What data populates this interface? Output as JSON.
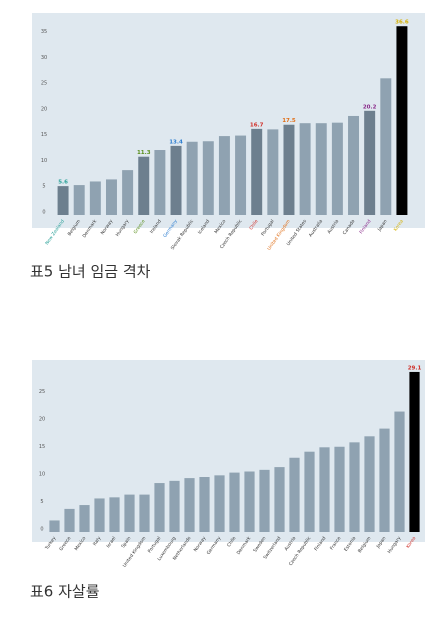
{
  "chart_data": [
    {
      "type": "bar",
      "categories": [
        "New Zealand",
        "Belgium",
        "Denmark",
        "Norway",
        "Hungary",
        "Greece",
        "Ireland",
        "Germany",
        "Slovak Republic",
        "Iceland",
        "Mexico",
        "Czech Republic",
        "Chile",
        "Portugal",
        "United Kingdom",
        "United States",
        "Australia",
        "Austria",
        "Canada",
        "Finland",
        "Japan",
        "Korea"
      ],
      "values": [
        5.6,
        5.8,
        6.5,
        6.9,
        8.7,
        11.3,
        12.6,
        13.4,
        14.2,
        14.3,
        15.3,
        15.4,
        16.7,
        16.6,
        17.5,
        17.8,
        17.8,
        17.9,
        19.2,
        20.2,
        26.5,
        36.6
      ],
      "value_labels": [
        "5.6",
        null,
        null,
        null,
        null,
        "11.3",
        null,
        "13.4",
        null,
        null,
        null,
        null,
        "16.7",
        null,
        "17.5",
        null,
        null,
        null,
        null,
        "20.2",
        null,
        "36.6"
      ],
      "colors": [
        "#6d7f8e",
        "#8fa2b1",
        "#8fa2b1",
        "#8fa2b1",
        "#8fa2b1",
        "#6d7f8e",
        "#8fa2b1",
        "#6d7f8e",
        "#8fa2b1",
        "#8fa2b1",
        "#8fa2b1",
        "#8fa2b1",
        "#6d7f8e",
        "#8fa2b1",
        "#6d7f8e",
        "#8fa2b1",
        "#8fa2b1",
        "#8fa2b1",
        "#8fa2b1",
        "#6d7f8e",
        "#8fa2b1",
        "#000000"
      ],
      "label_colors": [
        "#2aa198",
        "#333333",
        "#333333",
        "#333333",
        "#333333",
        "#5a8f1c",
        "#333333",
        "#2f7fd0",
        "#333333",
        "#333333",
        "#333333",
        "#333333",
        "#d0302a",
        "#333333",
        "#e0701a",
        "#333333",
        "#333333",
        "#333333",
        "#333333",
        "#8a2a8a",
        "#333333",
        "#d4b000"
      ],
      "ylim": [
        0,
        38
      ],
      "yticks": [
        0,
        5,
        10,
        15,
        20,
        25,
        30,
        35
      ],
      "caption": "표5 남녀 임금 격차"
    },
    {
      "type": "bar",
      "categories": [
        "Turkey",
        "Greece",
        "Mexico",
        "Italy",
        "Israel",
        "Spain",
        "United Kingdom",
        "Portugal",
        "Luxembourg",
        "Netherlands",
        "Norway",
        "Germany",
        "Chile",
        "Denmark",
        "Sweden",
        "Switzerland",
        "Austria",
        "Czech Republic",
        "Finland",
        "France",
        "Estonia",
        "Belgium",
        "Japan",
        "Hungary",
        "Korea"
      ],
      "values": [
        2.1,
        4.2,
        4.9,
        6.1,
        6.3,
        6.8,
        6.8,
        8.9,
        9.3,
        9.8,
        10.0,
        10.3,
        10.8,
        11.0,
        11.3,
        11.8,
        13.5,
        14.6,
        15.4,
        15.5,
        16.3,
        17.4,
        18.8,
        21.9,
        29.1
      ],
      "value_labels": [
        null,
        null,
        null,
        null,
        null,
        null,
        null,
        null,
        null,
        null,
        null,
        null,
        null,
        null,
        null,
        null,
        null,
        null,
        null,
        null,
        null,
        null,
        null,
        null,
        "29.1"
      ],
      "colors": [
        "#8fa2b1",
        "#8fa2b1",
        "#8fa2b1",
        "#8fa2b1",
        "#8fa2b1",
        "#8fa2b1",
        "#8fa2b1",
        "#8fa2b1",
        "#8fa2b1",
        "#8fa2b1",
        "#8fa2b1",
        "#8fa2b1",
        "#8fa2b1",
        "#8fa2b1",
        "#8fa2b1",
        "#8fa2b1",
        "#8fa2b1",
        "#8fa2b1",
        "#8fa2b1",
        "#8fa2b1",
        "#8fa2b1",
        "#8fa2b1",
        "#8fa2b1",
        "#8fa2b1",
        "#000000"
      ],
      "label_colors": [
        "#333333",
        "#333333",
        "#333333",
        "#333333",
        "#333333",
        "#333333",
        "#333333",
        "#333333",
        "#333333",
        "#333333",
        "#333333",
        "#333333",
        "#333333",
        "#333333",
        "#333333",
        "#333333",
        "#333333",
        "#333333",
        "#333333",
        "#333333",
        "#333333",
        "#333333",
        "#333333",
        "#333333",
        "#d0302a"
      ],
      "ylim": [
        0,
        30
      ],
      "yticks": [
        0,
        5,
        10,
        15,
        20,
        25
      ],
      "caption": "표6 자살률"
    }
  ]
}
